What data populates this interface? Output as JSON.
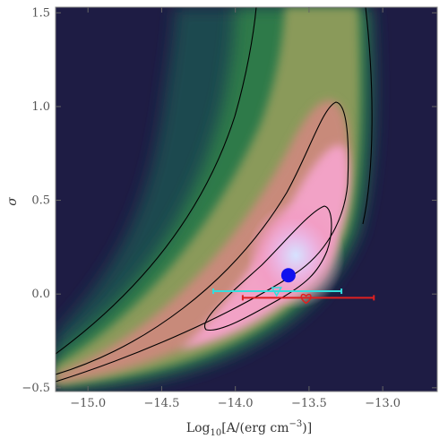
{
  "chart_data": {
    "type": "heatmap",
    "title": "",
    "xlabel": "Log",
    "xlabel_sub": "10",
    "xlabel_rest": "[A/(erg cm",
    "xlabel_sup": "−3",
    "xlabel_end": ")]",
    "ylabel": "σ",
    "xlim": [
      -15.22,
      -12.63
    ],
    "ylim": [
      -0.52,
      1.53
    ],
    "x_ticks": [
      {
        "value": -15.0,
        "label": "−15.0"
      },
      {
        "value": -14.5,
        "label": "−14.5"
      },
      {
        "value": -14.0,
        "label": "−14.0"
      },
      {
        "value": -13.5,
        "label": "−13.5"
      },
      {
        "value": -13.0,
        "label": "−13.0"
      }
    ],
    "y_ticks": [
      {
        "value": -0.5,
        "label": "−0.5"
      },
      {
        "value": 0.0,
        "label": "0.0"
      },
      {
        "value": 0.5,
        "label": "0.5"
      },
      {
        "value": 1.0,
        "label": "1.0"
      },
      {
        "value": 1.5,
        "label": "1.5"
      }
    ],
    "grid": false,
    "background_color": "#1e1c44",
    "colormap": [
      "#1e1c44",
      "#1f4a50",
      "#2e7a4a",
      "#8a9a5a",
      "#c88a7a",
      "#f2a2c6",
      "#d8d0f0",
      "#c8d8ff"
    ],
    "likelihood_peak": {
      "x": -13.55,
      "y": 0.22
    },
    "contour_levels": [
      "outer",
      "middle",
      "inner"
    ],
    "best_fit_point": {
      "x": -13.64,
      "y": 0.1,
      "color": "#1010ee"
    },
    "measurements": [
      {
        "x": -13.72,
        "y": 0.015,
        "xerr_low": 0.43,
        "xerr_high": 0.44,
        "marker": "triangle-down",
        "color": "#33dddd"
      },
      {
        "x": -13.52,
        "y": -0.02,
        "xerr_low": 0.43,
        "xerr_high": 0.46,
        "marker": "heart",
        "color": "#e02020"
      }
    ]
  }
}
